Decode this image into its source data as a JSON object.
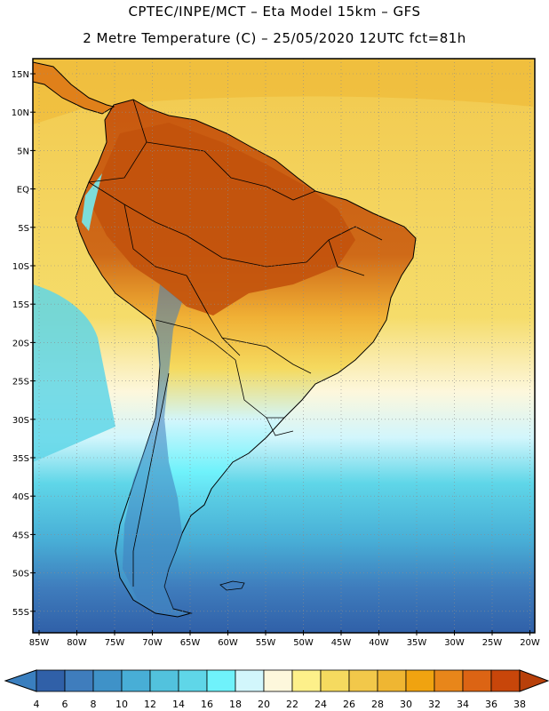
{
  "title": {
    "line1": "CPTEC/INPE/MCT –  Eta Model 15km – GFS",
    "line2": "2 Metre Temperature (C) – 25/05/2020 12UTC fct=81h"
  },
  "axes": {
    "lat_labels": [
      "15N",
      "10N",
      "5N",
      "EQ",
      "5S",
      "10S",
      "15S",
      "20S",
      "25S",
      "30S",
      "35S",
      "40S",
      "45S",
      "50S",
      "55S"
    ],
    "lon_labels": [
      "85W",
      "80W",
      "75W",
      "70W",
      "65W",
      "60W",
      "55W",
      "50W",
      "45W",
      "40W",
      "35W",
      "30W",
      "25W",
      "20W"
    ]
  },
  "colorbar": {
    "labels": [
      "4",
      "6",
      "8",
      "10",
      "12",
      "14",
      "16",
      "18",
      "20",
      "22",
      "24",
      "26",
      "28",
      "30",
      "32",
      "34",
      "36",
      "38"
    ],
    "below_color": "#3a7fbf",
    "above_color": "#b8400a",
    "colors": [
      "#3060a8",
      "#3f7dbd",
      "#3f92c8",
      "#48aed6",
      "#52c2dd",
      "#5fd6e8",
      "#6ff2fb",
      "#d2f6fc",
      "#fdf7dc",
      "#fdf08a",
      "#f5da5f",
      "#f2c84a",
      "#efb632",
      "#f0a310",
      "#e8861a",
      "#dc6414",
      "#c8460a"
    ]
  },
  "map": {
    "ocean_base": "#f2cf57",
    "ocean_cool": "#5fd6e8",
    "ocean_cold": "#3f7dbd",
    "land_hot": "#c8580f"
  }
}
